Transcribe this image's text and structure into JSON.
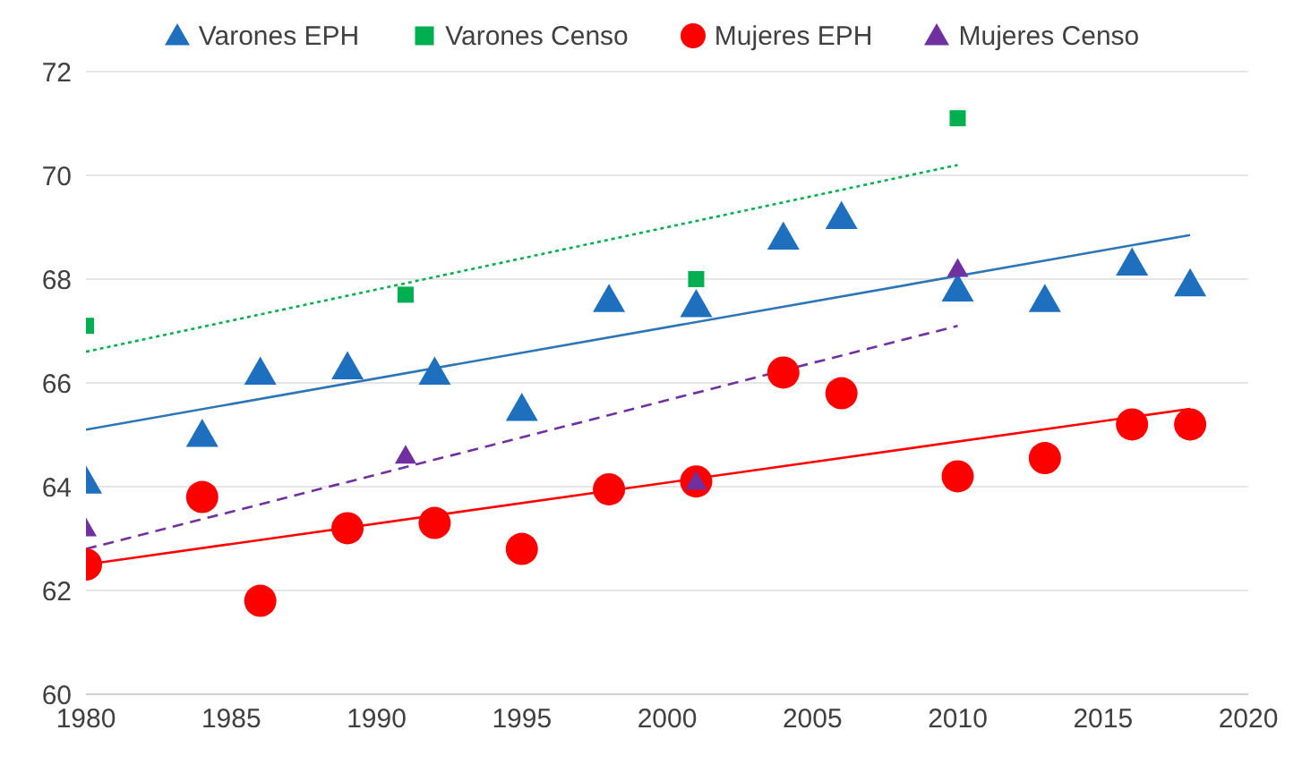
{
  "chart_data": {
    "type": "scatter",
    "xlim": [
      1980,
      2020
    ],
    "xticks": [
      1980,
      1985,
      1990,
      1995,
      2000,
      2005,
      2010,
      2015,
      2020
    ],
    "ylim": [
      60,
      72
    ],
    "yticks": [
      60,
      62,
      64,
      66,
      68,
      70,
      72
    ],
    "grid": "y",
    "legend": "top",
    "series": [
      {
        "name": "Varones EPH",
        "color": "#1f6fbf",
        "marker": "triangle",
        "x": [
          1980,
          1984,
          1986,
          1989,
          1992,
          1995,
          1998,
          2001,
          2004,
          2006,
          2010,
          2013,
          2016,
          2018
        ],
        "values": [
          64.1,
          65.0,
          66.2,
          66.3,
          66.2,
          65.5,
          67.6,
          67.5,
          68.8,
          69.2,
          67.8,
          67.6,
          68.3,
          67.9
        ]
      },
      {
        "name": "Varones Censo",
        "color": "#00b050",
        "marker": "square",
        "x": [
          1980,
          1991,
          2001,
          2010
        ],
        "values": [
          67.1,
          67.7,
          68.0,
          71.1
        ]
      },
      {
        "name": "Mujeres EPH",
        "color": "#ff0000",
        "marker": "circle",
        "x": [
          1980,
          1984,
          1986,
          1989,
          1992,
          1995,
          1998,
          2001,
          2004,
          2006,
          2010,
          2013,
          2016,
          2018
        ],
        "values": [
          62.5,
          63.8,
          61.8,
          63.2,
          63.3,
          62.8,
          63.95,
          64.1,
          66.2,
          65.8,
          64.2,
          64.55,
          65.2,
          65.2
        ]
      },
      {
        "name": "Mujeres Censo",
        "color": "#7030a0",
        "marker": "triangle",
        "x": [
          1980,
          1991,
          2001,
          2010
        ],
        "values": [
          63.2,
          64.6,
          64.1,
          68.2
        ]
      },
      {
        "type": "line",
        "color": "#2e75b6",
        "line_style": "solid",
        "x": [
          1980,
          2018
        ],
        "values": [
          65.1,
          68.85
        ]
      },
      {
        "type": "line",
        "color": "#00b050",
        "line_style": "dotted",
        "x": [
          1980,
          2010
        ],
        "values": [
          66.6,
          70.2
        ]
      },
      {
        "type": "line",
        "color": "#7030a0",
        "line_style": "dashed",
        "x": [
          1980,
          2010
        ],
        "values": [
          62.8,
          67.1
        ]
      },
      {
        "type": "line",
        "color": "#ff0000",
        "line_style": "solid",
        "x": [
          1980,
          2018
        ],
        "values": [
          62.5,
          65.5
        ]
      }
    ]
  }
}
